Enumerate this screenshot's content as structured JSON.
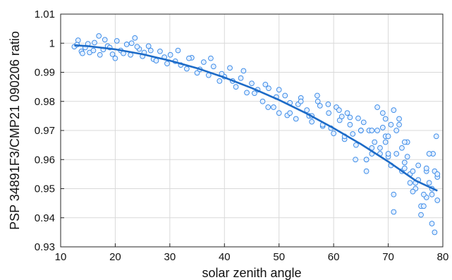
{
  "chart_data": {
    "type": "scatter",
    "title": "",
    "xlabel": "solar zenith angle",
    "ylabel": "PSP 34891F3/CMP21 090206 ratio",
    "xlim": [
      10,
      80
    ],
    "ylim": [
      0.93,
      1.01
    ],
    "xticks": [
      10,
      20,
      30,
      40,
      50,
      60,
      70,
      80
    ],
    "yticks": [
      0.93,
      0.94,
      0.95,
      0.96,
      0.97,
      0.98,
      0.99,
      1.0,
      1.01
    ],
    "xtick_labels": [
      "10",
      "20",
      "30",
      "40",
      "50",
      "60",
      "70",
      "80"
    ],
    "ytick_labels": [
      "0.93",
      "0.94",
      "0.95",
      "0.96",
      "0.97",
      "0.98",
      "0.99",
      "1",
      "1.01"
    ],
    "grid": true,
    "legend": "none",
    "colors": {
      "marker_fill": "#e3efff",
      "marker_edge": "#2f84e6",
      "fit_line": "#1d6bc7"
    },
    "series": [
      {
        "kind": "scatter",
        "x": [
          12.5,
          13.2,
          13.8,
          14.5,
          15.3,
          16.2,
          17.0,
          17.8,
          18.6,
          19.5,
          20.3,
          21.0,
          22.1,
          22.8,
          23.6,
          24.4,
          25.3,
          26.1,
          27.0,
          28.2,
          29.0,
          30.1,
          31.0,
          32.0,
          33.1,
          34.0,
          35.0,
          36.2,
          37.1,
          38.0,
          39.1,
          40.0,
          41.0,
          42.1,
          43.0,
          44.1,
          45.0,
          46.1,
          47.0,
          48.1,
          49.0,
          50.0,
          51.1,
          52.0,
          53.1,
          54.0,
          55.1,
          56.0,
          57.1,
          58.0,
          59.1,
          60.0,
          61.1,
          62.0,
          63.0,
          64.1,
          65.0,
          66.0,
          67.0,
          68.0,
          69.0,
          70.0,
          71.0,
          72.0,
          73.0,
          74.0,
          75.0,
          76.0,
          77.0,
          78.0,
          78.5,
          79.0,
          13.0,
          14.0,
          15.0,
          16.0,
          17.2,
          18.1,
          19.0,
          20.0,
          21.5,
          23.0,
          24.0,
          25.0,
          26.5,
          27.5,
          29.5,
          31.5,
          33.5,
          35.5,
          37.5,
          39.5,
          41.5,
          43.5,
          45.5,
          47.5,
          49.5,
          51.5,
          53.5,
          55.5,
          57.5,
          59.5,
          61.5,
          63.5,
          65.5,
          67.5,
          69.5,
          71.5,
          73.5,
          75.5,
          77.5,
          79.0,
          60.5,
          62.5,
          64.5,
          66.5,
          68.5,
          70.5,
          72.5,
          74.5,
          76.5,
          78.2,
          57.0,
          59.0,
          61.0,
          63.0,
          65.0,
          67.0,
          69.0,
          71.0,
          73.0,
          75.0,
          77.0,
          78.8,
          68.0,
          69.5,
          70.5,
          71.5,
          72.5,
          73.5,
          74.5,
          75.5,
          76.5,
          77.5,
          78.5,
          64.0,
          65.0,
          66.0,
          67.0,
          68.5,
          69.5,
          70.0,
          71.0,
          72.0,
          73.0,
          76.0,
          77.0,
          78.0,
          79.0,
          48.0,
          52.0,
          56.0,
          58.0,
          62.0,
          50.0,
          54.0,
          66.0,
          70.0,
          74.0,
          78.0
        ],
        "y": [
          0.9988,
          1.001,
          0.9972,
          0.9985,
          0.9968,
          1.0002,
          1.0025,
          0.9978,
          0.999,
          0.9962,
          1.0008,
          0.9975,
          0.9996,
          0.996,
          1.0018,
          0.998,
          0.9968,
          0.999,
          0.9945,
          0.9972,
          0.9952,
          0.996,
          0.9938,
          0.9925,
          0.9912,
          0.995,
          0.9898,
          0.9935,
          0.989,
          0.992,
          0.987,
          0.9885,
          0.9915,
          0.985,
          0.988,
          0.983,
          0.9862,
          0.984,
          0.98,
          0.9845,
          0.978,
          0.976,
          0.982,
          0.9795,
          0.974,
          0.9812,
          0.977,
          0.973,
          0.98,
          0.9715,
          0.976,
          0.969,
          0.9735,
          0.967,
          0.972,
          0.965,
          0.97,
          0.956,
          0.964,
          0.97,
          0.976,
          0.961,
          0.948,
          0.972,
          0.959,
          0.955,
          0.95,
          0.944,
          0.956,
          0.938,
          0.935,
          0.946,
          0.9995,
          0.9965,
          0.9998,
          0.9975,
          0.996,
          1.0012,
          0.9985,
          0.9948,
          0.9965,
          1.0,
          0.9988,
          0.9955,
          0.9975,
          0.994,
          0.993,
          0.9975,
          0.9948,
          0.991,
          0.9948,
          0.9895,
          0.987,
          0.9905,
          0.9828,
          0.9858,
          0.9815,
          0.9752,
          0.979,
          0.975,
          0.9785,
          0.9708,
          0.9748,
          0.9688,
          0.9728,
          0.966,
          0.968,
          0.962,
          0.966,
          0.958,
          0.952,
          0.954,
          0.978,
          0.976,
          0.9742,
          0.97,
          0.964,
          0.958,
          0.956,
          0.949,
          0.944,
          0.962,
          0.982,
          0.979,
          0.977,
          0.9745,
          0.97,
          0.962,
          0.971,
          0.942,
          0.957,
          0.952,
          0.947,
          0.968,
          0.978,
          0.974,
          0.972,
          0.97,
          0.964,
          0.961,
          0.956,
          0.953,
          0.948,
          0.962,
          0.956,
          0.96,
          0.97,
          0.96,
          0.97,
          0.962,
          0.966,
          0.968,
          0.977,
          0.974,
          0.966,
          0.941,
          0.957,
          0.948,
          0.955,
          0.978,
          0.976,
          0.975,
          0.972,
          0.968,
          0.984,
          0.98,
          0.96,
          0.962,
          0.952,
          0.95
        ]
      },
      {
        "kind": "fit_curve",
        "x": [
          12.5,
          15,
          20,
          25,
          30,
          35,
          40,
          45,
          50,
          55,
          60,
          65,
          70,
          75,
          79
        ],
        "y": [
          0.9993,
          0.999,
          0.9979,
          0.9962,
          0.994,
          0.9914,
          0.9882,
          0.9846,
          0.9805,
          0.9759,
          0.9708,
          0.9653,
          0.9593,
          0.9528,
          0.9493
        ]
      }
    ]
  }
}
